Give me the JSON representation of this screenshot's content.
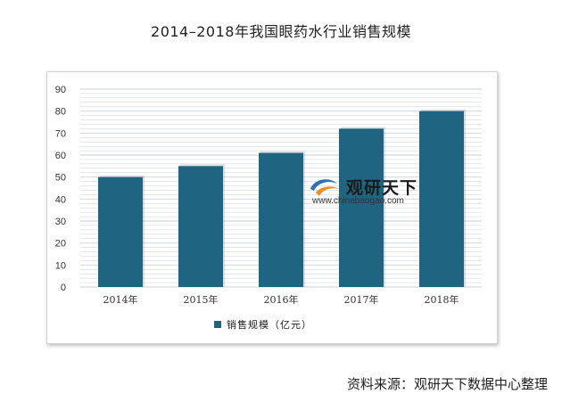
{
  "title": "2014–2018年我国眼药水行业销售规模",
  "source": "资料来源：观研天下数据中心整理",
  "watermark": {
    "name": "观研天下",
    "url": "www.chinabaogao.com"
  },
  "colors": {
    "bar": "#1f6480",
    "grid": "#c9d2da",
    "axis_text": "#333333"
  },
  "chart_data": {
    "type": "bar",
    "categories": [
      "2014年",
      "2015年",
      "2016年",
      "2017年",
      "2018年"
    ],
    "series": [
      {
        "name": "销售规模（亿元）",
        "values": [
          50,
          55,
          61,
          72,
          80
        ]
      }
    ],
    "yticks": [
      0,
      10,
      20,
      30,
      40,
      50,
      60,
      70,
      80,
      90
    ],
    "ylim": [
      0,
      90
    ],
    "grid": true,
    "legend": "bottom"
  }
}
